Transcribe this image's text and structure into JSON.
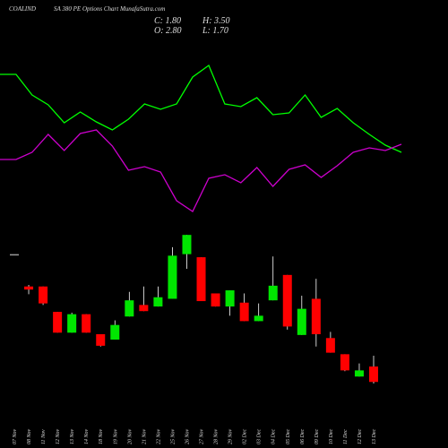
{
  "chart_data": [
    {
      "type": "candlestick",
      "symbol": "COALIND",
      "title": "SA 380  PE Options  Chart MunafaSutra.com",
      "close_label": "C: 1.80",
      "high_label": "H: 3.50",
      "open_label": "O: 2.80",
      "low_label": "L: 1.70",
      "categories": [
        "07 Nov",
        "08 Nov",
        "11 Nov",
        "12 Nov",
        "13 Nov",
        "14 Nov",
        "18 Nov",
        "19 Nov",
        "20 Nov",
        "21 Nov",
        "22 Nov",
        "25 Nov",
        "26 Nov",
        "27 Nov",
        "28 Nov",
        "29 Nov",
        "02 Dec",
        "03 Dec",
        "04 Dec",
        "05 Dec",
        "06 Dec",
        "09 Dec",
        "10 Dec",
        "11 Dec",
        "12 Dec",
        "13 Dec"
      ],
      "open": [
        10.1,
        8.0,
        8.0,
        6.35,
        5.0,
        6.2,
        4.9,
        4.55,
        6.05,
        6.8,
        6.7,
        7.2,
        10.1,
        9.9,
        7.55,
        6.7,
        6.95,
        5.75,
        7.1,
        8.75,
        4.85,
        7.2,
        4.65,
        3.6,
        2.15,
        2.8
      ],
      "high": [
        10.1,
        8.1,
        8.0,
        6.35,
        6.3,
        6.2,
        4.9,
        5.8,
        7.65,
        8.0,
        8.0,
        10.55,
        11.35,
        9.9,
        7.55,
        7.75,
        7.55,
        6.9,
        9.95,
        8.75,
        7.4,
        8.5,
        5.05,
        3.6,
        3.0,
        3.5
      ],
      "low": [
        10.1,
        7.5,
        6.8,
        5.0,
        5.0,
        5.0,
        4.1,
        4.55,
        6.05,
        6.4,
        6.7,
        7.2,
        9.15,
        7.05,
        6.7,
        6.1,
        5.75,
        5.75,
        7.1,
        5.2,
        4.85,
        4.1,
        3.7,
        2.5,
        2.15,
        1.7
      ],
      "close": [
        10.1,
        7.8,
        6.9,
        5.0,
        6.2,
        5.0,
        4.15,
        5.5,
        7.1,
        6.4,
        7.3,
        10.0,
        11.35,
        7.05,
        6.7,
        7.75,
        5.75,
        6.1,
        8.05,
        5.4,
        6.55,
        4.9,
        3.7,
        2.55,
        2.55,
        1.8
      ],
      "up_color": "#00e600",
      "down_color": "#ff0000",
      "flat_color": "#9a9a9a",
      "ylim": [
        0,
        12
      ]
    },
    {
      "type": "line",
      "series": [
        {
          "color": "#00ff00",
          "values": [
            83.5,
            83.5,
            72,
            66.5,
            56.5,
            62.5,
            57,
            52.5,
            58.5,
            67,
            64,
            67,
            82,
            88.5,
            67,
            65.5,
            70.5,
            61,
            62,
            72,
            59.5,
            64.5,
            56.5,
            50,
            44,
            40
          ]
        },
        {
          "color": "#cc00cc",
          "values": [
            36,
            36,
            40,
            50,
            41,
            50.5,
            52.5,
            43.5,
            30,
            32,
            29,
            13,
            7,
            25.5,
            27.5,
            23,
            31.5,
            21,
            30.5,
            33,
            26,
            32.5,
            40,
            42.5,
            41,
            44.5
          ]
        }
      ],
      "ylim": [
        0,
        100
      ]
    }
  ]
}
